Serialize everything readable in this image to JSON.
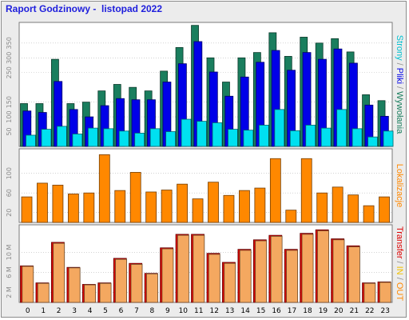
{
  "title": "Raport Godzinowy -  listopad 2022",
  "chart_data": [
    {
      "type": "bar",
      "id": "hits",
      "x": [
        0,
        1,
        2,
        3,
        4,
        5,
        6,
        7,
        8,
        9,
        10,
        11,
        12,
        13,
        14,
        15,
        16,
        17,
        18,
        19,
        20,
        21,
        22,
        23
      ],
      "series": [
        {
          "name": "Strony",
          "color": "#00e0f0",
          "values": [
            38,
            58,
            68,
            42,
            62,
            60,
            52,
            45,
            60,
            50,
            92,
            85,
            80,
            58,
            55,
            72,
            125,
            53,
            72,
            62,
            125,
            60,
            32,
            52
          ]
        },
        {
          "name": "Pliki",
          "color": "#0000e8",
          "values": [
            120,
            115,
            220,
            125,
            100,
            138,
            162,
            158,
            158,
            218,
            280,
            355,
            252,
            170,
            235,
            285,
            325,
            258,
            318,
            295,
            330,
            282,
            140,
            102
          ]
        },
        {
          "name": "Wywołania",
          "color": "#1a7e5e",
          "values": [
            145,
            145,
            295,
            145,
            150,
            188,
            210,
            200,
            188,
            255,
            335,
            410,
            300,
            218,
            300,
            318,
            385,
            305,
            370,
            350,
            365,
            320,
            175,
            155
          ]
        }
      ],
      "yticks": [
        50,
        100,
        150,
        250,
        300,
        350
      ],
      "ylim": [
        0,
        420
      ],
      "side_label": [
        {
          "text": "Strony",
          "color": "#00c0d0"
        },
        {
          "text": " / ",
          "color": "#909090"
        },
        {
          "text": "Pliki",
          "color": "#0000e8"
        },
        {
          "text": " / ",
          "color": "#909090"
        },
        {
          "text": "Wywołania",
          "color": "#1a7e5e"
        }
      ]
    },
    {
      "type": "bar",
      "id": "visits",
      "x": [
        0,
        1,
        2,
        3,
        4,
        5,
        6,
        7,
        8,
        9,
        10,
        11,
        12,
        13,
        14,
        15,
        16,
        17,
        18,
        19,
        20,
        21,
        22,
        23
      ],
      "series": [
        {
          "name": "Lokalizacje",
          "color": "#ff8800",
          "values": [
            52,
            80,
            76,
            58,
            60,
            138,
            65,
            102,
            62,
            66,
            78,
            48,
            82,
            55,
            65,
            70,
            130,
            25,
            130,
            60,
            72,
            56,
            34,
            52
          ]
        }
      ],
      "yticks": [
        20,
        60,
        100
      ],
      "ylim": [
        0,
        150
      ],
      "side_label": [
        {
          "text": "Lokalizacje",
          "color": "#ff8800"
        }
      ]
    },
    {
      "type": "bar",
      "id": "transfer",
      "x": [
        0,
        1,
        2,
        3,
        4,
        5,
        6,
        7,
        8,
        9,
        10,
        11,
        12,
        13,
        14,
        15,
        16,
        17,
        18,
        19,
        20,
        21,
        22,
        23
      ],
      "series": [
        {
          "name": "Transfer",
          "color": "#dd0000",
          "values": [
            7.3,
            3.9,
            12.0,
            7.0,
            3.6,
            3.9,
            8.8,
            7.8,
            5.8,
            10.9,
            13.6,
            13.6,
            9.8,
            8.0,
            10.6,
            12.5,
            13.4,
            10.6,
            13.8,
            14.5,
            12.7,
            11.3,
            3.9,
            4.1
          ]
        },
        {
          "name": "IN",
          "color": "#f0a000",
          "values": [
            7.2,
            3.8,
            11.8,
            6.9,
            3.5,
            3.8,
            8.6,
            7.6,
            5.7,
            10.7,
            13.4,
            13.4,
            9.6,
            7.8,
            10.4,
            12.3,
            13.2,
            10.4,
            13.6,
            14.3,
            12.5,
            11.1,
            3.8,
            4.0
          ]
        }
      ],
      "yticks_labels": [
        {
          "value": 2,
          "label": "2 M"
        },
        {
          "value": 6,
          "label": "6 M"
        },
        {
          "value": 10,
          "label": "10 M"
        }
      ],
      "ylim": [
        0,
        15.5
      ],
      "side_label": [
        {
          "text": "Transfer",
          "color": "#dd0000"
        },
        {
          "text": " / ",
          "color": "#909090"
        },
        {
          "text": "IN",
          "color": "#f0c000"
        },
        {
          "text": " / ",
          "color": "#909090"
        },
        {
          "text": "OUT",
          "color": "#ff8800"
        }
      ]
    }
  ],
  "colors": {
    "frame_bg": "#ececec",
    "panel_bg": "#ffffff",
    "grid": "#b8b8b8"
  }
}
